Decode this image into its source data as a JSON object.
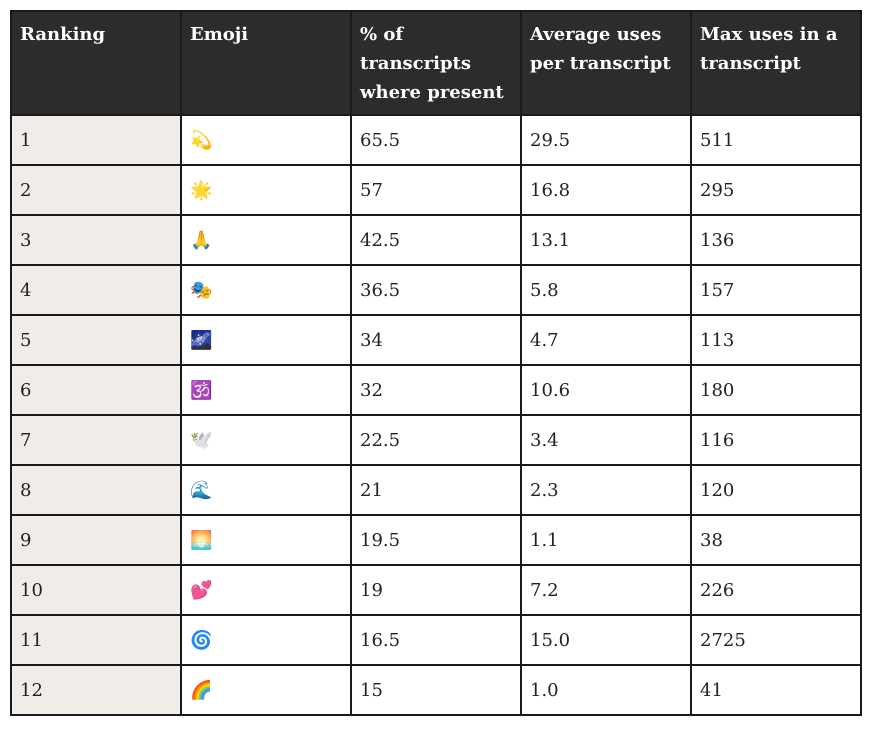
{
  "headers": [
    "Ranking",
    "Emoji",
    "% of transcripts where present",
    "Average uses per transcript",
    "Max uses in a transcript"
  ],
  "rows": [
    {
      "rank": "1",
      "emoji": "💫",
      "emoji_name": "dizzy",
      "pct": "65.5",
      "avg": "29.5",
      "max": "511"
    },
    {
      "rank": "2",
      "emoji": "🌟",
      "emoji_name": "glowing-star",
      "pct": "57",
      "avg": "16.8",
      "max": "295"
    },
    {
      "rank": "3",
      "emoji": "🙏",
      "emoji_name": "folded-hands",
      "pct": "42.5",
      "avg": "13.1",
      "max": "136"
    },
    {
      "rank": "4",
      "emoji": "🎭",
      "emoji_name": "performing-arts",
      "pct": "36.5",
      "avg": "5.8",
      "max": "157"
    },
    {
      "rank": "5",
      "emoji": "🌌",
      "emoji_name": "milky-way",
      "pct": "34",
      "avg": "4.7",
      "max": "113"
    },
    {
      "rank": "6",
      "emoji": "🕉️",
      "emoji_name": "om",
      "pct": "32",
      "avg": "10.6",
      "max": "180"
    },
    {
      "rank": "7",
      "emoji": "🕊️",
      "emoji_name": "dove",
      "pct": "22.5",
      "avg": "3.4",
      "max": "116"
    },
    {
      "rank": "8",
      "emoji": "🌊",
      "emoji_name": "water-wave",
      "pct": "21",
      "avg": "2.3",
      "max": "120"
    },
    {
      "rank": "9",
      "emoji": "🌅",
      "emoji_name": "sunrise",
      "pct": "19.5",
      "avg": "1.1",
      "max": "38"
    },
    {
      "rank": "10",
      "emoji": "💕",
      "emoji_name": "two-hearts",
      "pct": "19",
      "avg": "7.2",
      "max": "226"
    },
    {
      "rank": "11",
      "emoji": "🌀",
      "emoji_name": "cyclone",
      "pct": "16.5",
      "avg": "15.0",
      "max": "2725"
    },
    {
      "rank": "12",
      "emoji": "🌈",
      "emoji_name": "rainbow",
      "pct": "15",
      "avg": "1.0",
      "max": "41"
    }
  ]
}
